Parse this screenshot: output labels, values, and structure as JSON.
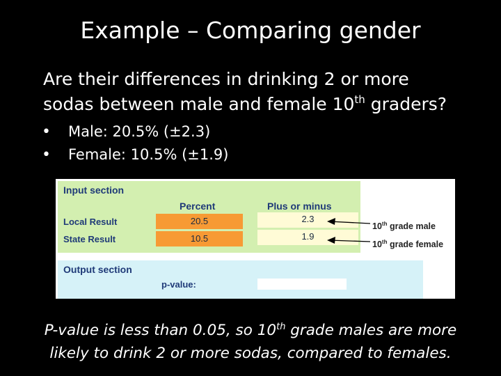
{
  "title": "Example – Comparing gender",
  "question": {
    "line1": "Are their differences in drinking 2 or more",
    "line2_pre": "sodas between male and female 10",
    "line2_sup": "th",
    "line2_post": " graders?"
  },
  "bullets": [
    "Male: 20.5% (±2.3)",
    "Female: 10.5% (±1.9)"
  ],
  "panel": {
    "input_title": "Input section",
    "col_percent": "Percent",
    "col_pm": "Plus or minus",
    "rows": [
      {
        "label": "Local Result",
        "percent": "20.5",
        "pm": "2.3"
      },
      {
        "label": "State Result",
        "percent": "10.5",
        "pm": "1.9"
      }
    ],
    "output_title": "Output section",
    "pvalue_label": "p-value:",
    "arrow_labels": [
      {
        "num": "10",
        "sup": "th",
        "text": " grade male"
      },
      {
        "num": "10",
        "sup": "th",
        "text": " grade female"
      }
    ],
    "colors": {
      "input_bg": "#d3efb0",
      "output_bg": "#d6f2f8",
      "percent_bg": "#f79a34",
      "pm_bg": "#fffbd6"
    }
  },
  "conclusion": {
    "pre": "P-value is less than 0.05, so 10",
    "sup": "th",
    "post": " grade males are more",
    "line2": "likely to drink 2 or more sodas, compared to females."
  }
}
